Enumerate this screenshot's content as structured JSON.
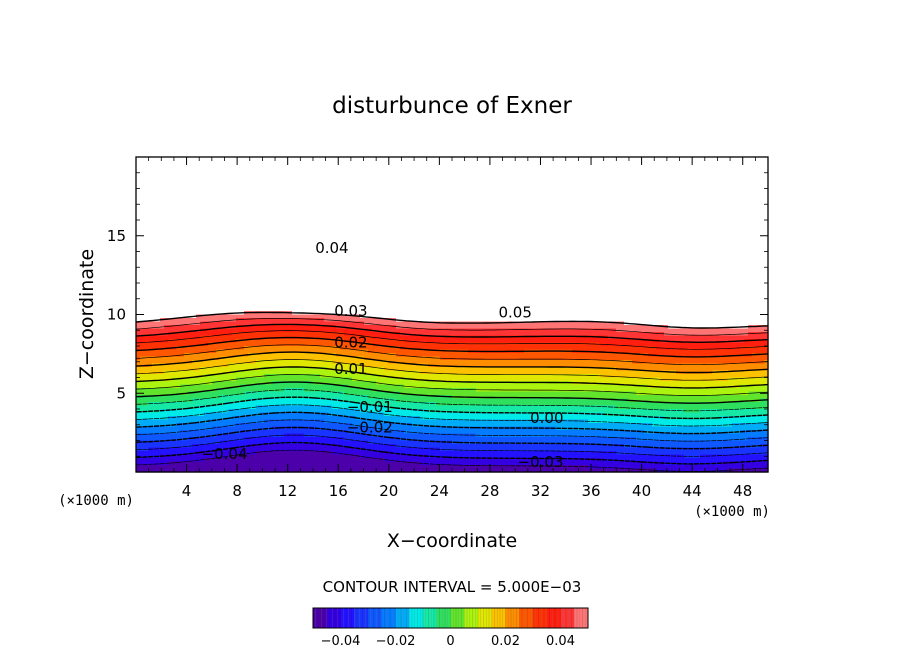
{
  "chart_data": {
    "type": "contour",
    "title": "disturbunce of Exner",
    "xlabel": "X−coordinate",
    "ylabel": "Z−coordinate",
    "x_unit_left": "(×1000 m)",
    "x_unit_right": "(×1000 m)",
    "xlim": [
      0,
      50
    ],
    "ylim": [
      0,
      20
    ],
    "xticks": [
      "4",
      "8",
      "12",
      "16",
      "20",
      "24",
      "28",
      "32",
      "36",
      "40",
      "44",
      "48"
    ],
    "yticks": [
      "5",
      "10",
      "15"
    ],
    "contour_interval_text": "CONTOUR INTERVAL = 5.000E−03",
    "contour_interval": 0.005,
    "color_range": [
      -0.05,
      0.05
    ],
    "contour_labels": [
      {
        "text": "0.05",
        "x": 30,
        "z": 10.1
      },
      {
        "text": "0.04",
        "x": 15.5,
        "z": 14.2
      },
      {
        "text": "0.03",
        "x": 17,
        "z": 10.2
      },
      {
        "text": "0.02",
        "x": 17,
        "z": 8.2
      },
      {
        "text": "0.01",
        "x": 17,
        "z": 6.5
      },
      {
        "text": "0.00",
        "x": 32.5,
        "z": 3.4
      },
      {
        "text": "−0.01",
        "x": 18.5,
        "z": 4.1
      },
      {
        "text": "−0.02",
        "x": 18.5,
        "z": 2.8
      },
      {
        "text": "−0.03",
        "x": 32,
        "z": 0.6
      },
      {
        "text": "−0.04",
        "x": 7,
        "z": 1.1
      }
    ],
    "colorbar": {
      "tick_labels": [
        "−0.04",
        "−0.02",
        "0",
        "0.02",
        "0.04"
      ],
      "tick_values": [
        -0.04,
        -0.02,
        0,
        0.02,
        0.04
      ]
    },
    "colors": {
      "axes": "#000000",
      "saturated_max": "#ffffff"
    }
  }
}
